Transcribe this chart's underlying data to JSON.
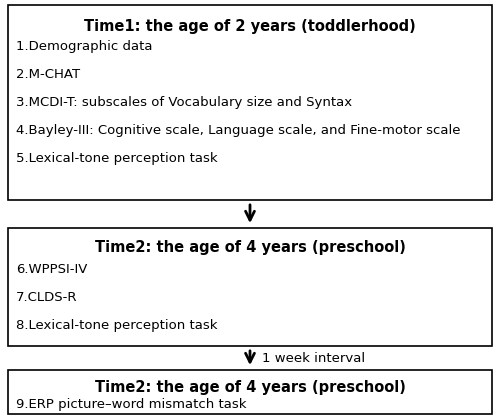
{
  "box1_title": "Time1: the age of 2 years (toddlerhood)",
  "box1_items": [
    "1.Demographic data",
    "2.M-CHAT",
    "3.MCDI-T: subscales of Vocabulary size and Syntax",
    "4.Bayley-III: Cognitive scale, Language scale, and Fine-motor scale",
    "5.Lexical-tone perception task"
  ],
  "box2_title": "Time2: the age of 4 years (preschool)",
  "box2_items": [
    "6.WPPSI-IV",
    "7.CLDS-R",
    "8.Lexical-tone perception task"
  ],
  "box3_title": "Time2: the age of 4 years (preschool)",
  "box3_items": [
    "9.ERP picture–word mismatch task"
  ],
  "arrow_label": "1 week interval",
  "bg_color": "#ffffff",
  "box_edge_color": "#000000",
  "text_color": "#000000",
  "title_fontsize": 10.5,
  "item_fontsize": 9.5,
  "arrow_label_fontsize": 9.5
}
